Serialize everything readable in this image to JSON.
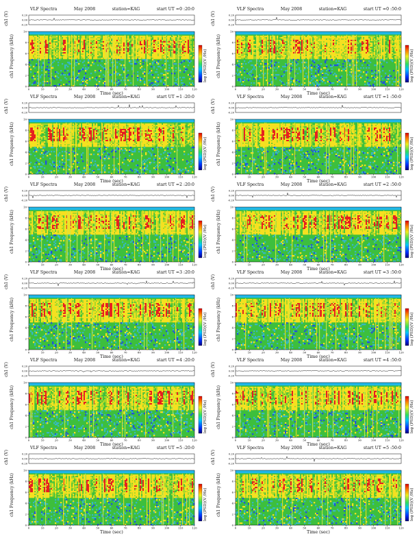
{
  "header": {
    "title": "VLF Spectra",
    "date": "May 2008",
    "station": "station=KAG",
    "start_prefix": "start UT"
  },
  "labels": {
    "ch1_axis": "ch1 (V)",
    "freq_axis": "ch1 Frequency (kHz)",
    "time_axis": "Time (sec)",
    "colorbar": "log (PSD)(V /Hz)"
  },
  "colors": {
    "background_noise": "#3dbf3d",
    "band_hot": "#e62020",
    "band_warm": "#f5e020",
    "cold_low": "#2050e0",
    "cutoff_band": "#20b8e8"
  },
  "chart_data": [
    {
      "type": "heatmap",
      "start_ut": "=0 :20:0",
      "xlim": [
        0,
        120
      ],
      "x_ticks": [
        0,
        10,
        20,
        30,
        40,
        50,
        60,
        70,
        80,
        90,
        100,
        110,
        120
      ],
      "ylim": [
        0,
        10
      ],
      "y_ticks": [
        0,
        2,
        4,
        6,
        8,
        10
      ],
      "ch1_ticks": [
        "0.20",
        "0.00",
        "-0.20"
      ]
    },
    {
      "type": "heatmap",
      "start_ut": "=0 :50:0",
      "xlim": [
        0,
        120
      ],
      "x_ticks": [
        0,
        10,
        20,
        30,
        40,
        50,
        60,
        70,
        80,
        90,
        100,
        110,
        120
      ],
      "ylim": [
        0,
        10
      ],
      "y_ticks": [
        0,
        2,
        4,
        6,
        8,
        10
      ],
      "ch1_ticks": [
        "0.20",
        "0.00",
        "-0.20"
      ]
    },
    {
      "type": "heatmap",
      "start_ut": "=1 :20:0",
      "xlim": [
        0,
        120
      ],
      "x_ticks": [
        0,
        10,
        20,
        30,
        40,
        50,
        60,
        70,
        80,
        90,
        100,
        110,
        120
      ],
      "ylim": [
        0,
        10
      ],
      "y_ticks": [
        0,
        2,
        4,
        6,
        8,
        10
      ],
      "ch1_ticks": [
        "0.20",
        "0.00",
        "-0.20"
      ]
    },
    {
      "type": "heatmap",
      "start_ut": "=1 :50:0",
      "xlim": [
        0,
        120
      ],
      "x_ticks": [
        0,
        10,
        20,
        30,
        40,
        50,
        60,
        70,
        80,
        90,
        100,
        110,
        120
      ],
      "ylim": [
        0,
        10
      ],
      "y_ticks": [
        0,
        2,
        4,
        6,
        8,
        10
      ],
      "ch1_ticks": [
        "0.20",
        "0.00",
        "-0.20"
      ]
    },
    {
      "type": "heatmap",
      "start_ut": "=2 :20:0",
      "xlim": [
        0,
        120
      ],
      "x_ticks": [
        0,
        10,
        20,
        30,
        40,
        50,
        60,
        70,
        80,
        90,
        100,
        110,
        120
      ],
      "ylim": [
        0,
        10
      ],
      "y_ticks": [
        0,
        2,
        4,
        6,
        8,
        10
      ],
      "ch1_ticks": [
        "0.20",
        "0.00",
        "-0.20"
      ]
    },
    {
      "type": "heatmap",
      "start_ut": "=2 :50:0",
      "xlim": [
        0,
        120
      ],
      "x_ticks": [
        0,
        10,
        20,
        30,
        40,
        50,
        60,
        70,
        80,
        90,
        100,
        110,
        120
      ],
      "ylim": [
        0,
        10
      ],
      "y_ticks": [
        0,
        2,
        4,
        6,
        8,
        10
      ],
      "ch1_ticks": [
        "0.20",
        "0.00",
        "-0.20"
      ]
    },
    {
      "type": "heatmap",
      "start_ut": "=3 :20:0",
      "xlim": [
        0,
        120
      ],
      "x_ticks": [
        0,
        10,
        20,
        30,
        40,
        50,
        60,
        70,
        80,
        90,
        100,
        110,
        120
      ],
      "ylim": [
        0,
        10
      ],
      "y_ticks": [
        0,
        2,
        4,
        6,
        8,
        10
      ],
      "ch1_ticks": [
        "0.20",
        "0.00",
        "-0.20"
      ]
    },
    {
      "type": "heatmap",
      "start_ut": "=3 :50:0",
      "xlim": [
        0,
        120
      ],
      "x_ticks": [
        0,
        10,
        20,
        30,
        40,
        50,
        60,
        70,
        80,
        90,
        100,
        110,
        120
      ],
      "ylim": [
        0,
        10
      ],
      "y_ticks": [
        0,
        2,
        4,
        6,
        8,
        10
      ],
      "ch1_ticks": [
        "0.20",
        "0.00",
        "-0.20"
      ]
    },
    {
      "type": "heatmap",
      "start_ut": "=4 :20:0",
      "xlim": [
        0,
        120
      ],
      "x_ticks": [
        0,
        10,
        20,
        30,
        40,
        50,
        60,
        70,
        80,
        90,
        100,
        110,
        120
      ],
      "ylim": [
        0,
        10
      ],
      "y_ticks": [
        0,
        2,
        4,
        6,
        8,
        10
      ],
      "ch1_ticks": [
        "0.20",
        "0.00",
        "-0.20"
      ]
    },
    {
      "type": "heatmap",
      "start_ut": "=4 :50:0",
      "xlim": [
        0,
        120
      ],
      "x_ticks": [
        0,
        10,
        20,
        30,
        40,
        50,
        60,
        70,
        80,
        90,
        100,
        110,
        120
      ],
      "ylim": [
        0,
        10
      ],
      "y_ticks": [
        0,
        2,
        4,
        6,
        8,
        10
      ],
      "ch1_ticks": [
        "0.20",
        "0.00",
        "-0.20"
      ]
    },
    {
      "type": "heatmap",
      "start_ut": "=5 :20:0",
      "xlim": [
        0,
        120
      ],
      "x_ticks": [
        0,
        10,
        20,
        30,
        40,
        50,
        60,
        70,
        80,
        90,
        100,
        110,
        120
      ],
      "ylim": [
        0,
        10
      ],
      "y_ticks": [
        0,
        2,
        4,
        6,
        8,
        10
      ],
      "ch1_ticks": [
        "0.20",
        "0.00",
        "-0.20"
      ]
    },
    {
      "type": "heatmap",
      "start_ut": "=5 :50:0",
      "xlim": [
        0,
        120
      ],
      "x_ticks": [
        0,
        10,
        20,
        30,
        40,
        50,
        60,
        70,
        80,
        90,
        100,
        110,
        120
      ],
      "ylim": [
        0,
        10
      ],
      "y_ticks": [
        0,
        2,
        4,
        6,
        8,
        10
      ],
      "ch1_ticks": [
        "0.20",
        "0.00",
        "-0.20"
      ]
    }
  ]
}
